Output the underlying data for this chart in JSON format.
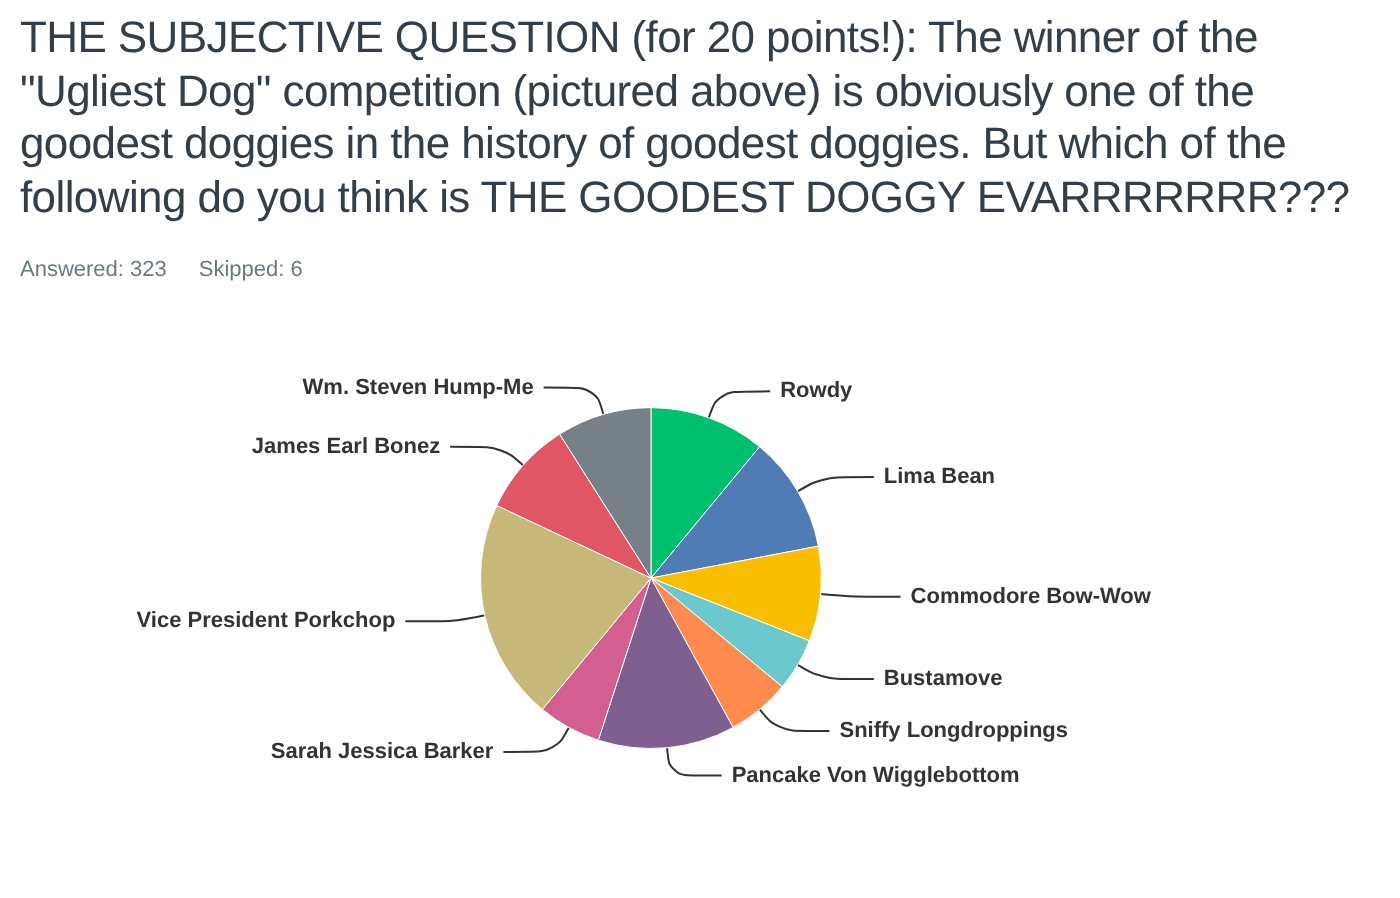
{
  "chart_data": {
    "type": "pie",
    "title": "THE SUBJECTIVE QUESTION (for 20 points!): The winner of the \"Ugliest Dog\" competition (pictured above) is obviously one of the goodest doggies in the history of goodest doggies. But which of the following do you think is THE GOODEST DOGGY EVARRRRRRR???",
    "annotations": [
      "Answered: 323",
      "Skipped: 6"
    ],
    "categories": [
      "Rowdy",
      "Lima Bean",
      "Commodore Bow-Wow",
      "Bustamove",
      "Sniffy Longdroppings",
      "Pancake Von Wigglebottom",
      "Sarah Jessica Barker",
      "Vice President Porkchop",
      "James Earl Bonez",
      "Wm. Steven Hump-Me"
    ],
    "values": [
      11,
      11,
      9,
      5,
      6,
      13,
      6,
      21,
      9,
      9
    ],
    "colors": [
      "#00bf6f",
      "#507cb6",
      "#f9be00",
      "#6bc8cd",
      "#ff8b4f",
      "#7f5e90",
      "#d25f90",
      "#c7b879",
      "#e05665",
      "#768086"
    ],
    "legend": false
  }
}
